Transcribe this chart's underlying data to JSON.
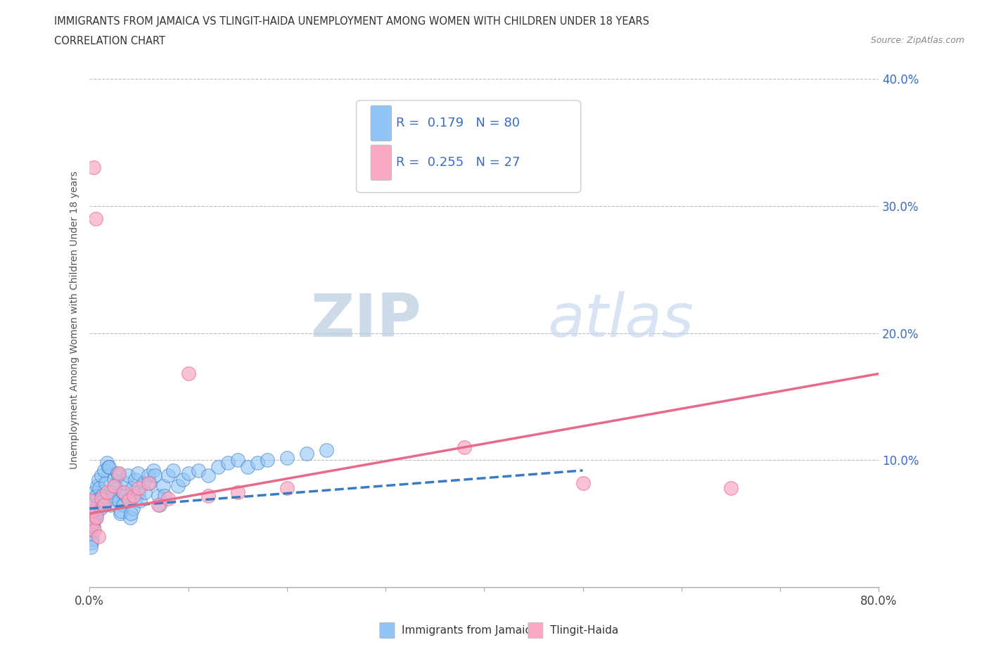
{
  "title_line1": "IMMIGRANTS FROM JAMAICA VS TLINGIT-HAIDA UNEMPLOYMENT AMONG WOMEN WITH CHILDREN UNDER 18 YEARS",
  "title_line2": "CORRELATION CHART",
  "source_text": "Source: ZipAtlas.com",
  "ylabel": "Unemployment Among Women with Children Under 18 years",
  "xlim": [
    0.0,
    0.8
  ],
  "ylim": [
    0.0,
    0.42
  ],
  "R_blue": 0.179,
  "N_blue": 80,
  "R_pink": 0.255,
  "N_pink": 27,
  "blue_color": "#92C5F7",
  "pink_color": "#F9A8C4",
  "blue_line_color": "#3A7CC3",
  "pink_line_color": "#E8698A",
  "grid_color": "#CCCCCC",
  "watermark_color": "#C8D8EE",
  "legend_text_color": "#3A6CC3",
  "blue_scatter_x": [
    0.003,
    0.005,
    0.008,
    0.002,
    0.006,
    0.009,
    0.004,
    0.007,
    0.001,
    0.003,
    0.005,
    0.008,
    0.002,
    0.006,
    0.009,
    0.004,
    0.007,
    0.001,
    0.01,
    0.012,
    0.015,
    0.018,
    0.011,
    0.013,
    0.016,
    0.019,
    0.014,
    0.02,
    0.022,
    0.025,
    0.028,
    0.021,
    0.023,
    0.026,
    0.029,
    0.024,
    0.03,
    0.033,
    0.036,
    0.039,
    0.031,
    0.034,
    0.037,
    0.032,
    0.04,
    0.043,
    0.046,
    0.049,
    0.041,
    0.044,
    0.047,
    0.042,
    0.05,
    0.055,
    0.06,
    0.065,
    0.051,
    0.056,
    0.061,
    0.066,
    0.07,
    0.075,
    0.08,
    0.085,
    0.071,
    0.076,
    0.09,
    0.095,
    0.1,
    0.11,
    0.12,
    0.13,
    0.14,
    0.15,
    0.16,
    0.17,
    0.18,
    0.2,
    0.22,
    0.24
  ],
  "blue_scatter_y": [
    0.05,
    0.06,
    0.07,
    0.045,
    0.055,
    0.065,
    0.048,
    0.058,
    0.042,
    0.038,
    0.075,
    0.08,
    0.035,
    0.068,
    0.085,
    0.052,
    0.072,
    0.032,
    0.078,
    0.088,
    0.092,
    0.098,
    0.062,
    0.072,
    0.082,
    0.095,
    0.068,
    0.095,
    0.075,
    0.085,
    0.09,
    0.065,
    0.072,
    0.08,
    0.088,
    0.07,
    0.068,
    0.075,
    0.082,
    0.088,
    0.058,
    0.065,
    0.072,
    0.06,
    0.07,
    0.078,
    0.085,
    0.09,
    0.055,
    0.062,
    0.07,
    0.058,
    0.075,
    0.082,
    0.088,
    0.092,
    0.068,
    0.075,
    0.082,
    0.088,
    0.072,
    0.08,
    0.088,
    0.092,
    0.065,
    0.072,
    0.08,
    0.085,
    0.09,
    0.092,
    0.088,
    0.095,
    0.098,
    0.1,
    0.095,
    0.098,
    0.1,
    0.102,
    0.105,
    0.108
  ],
  "pink_scatter_x": [
    0.002,
    0.003,
    0.005,
    0.007,
    0.009,
    0.004,
    0.006,
    0.001,
    0.012,
    0.015,
    0.018,
    0.025,
    0.03,
    0.035,
    0.04,
    0.045,
    0.05,
    0.06,
    0.07,
    0.08,
    0.1,
    0.12,
    0.15,
    0.2,
    0.38,
    0.5,
    0.65
  ],
  "pink_scatter_y": [
    0.06,
    0.05,
    0.045,
    0.055,
    0.04,
    0.33,
    0.29,
    0.068,
    0.07,
    0.065,
    0.075,
    0.08,
    0.09,
    0.075,
    0.068,
    0.072,
    0.078,
    0.082,
    0.065,
    0.07,
    0.168,
    0.072,
    0.075,
    0.078,
    0.11,
    0.082,
    0.078
  ],
  "blue_line_x": [
    0.0,
    0.5
  ],
  "blue_line_y": [
    0.062,
    0.092
  ],
  "pink_line_x": [
    0.0,
    0.8
  ],
  "pink_line_y": [
    0.058,
    0.168
  ]
}
